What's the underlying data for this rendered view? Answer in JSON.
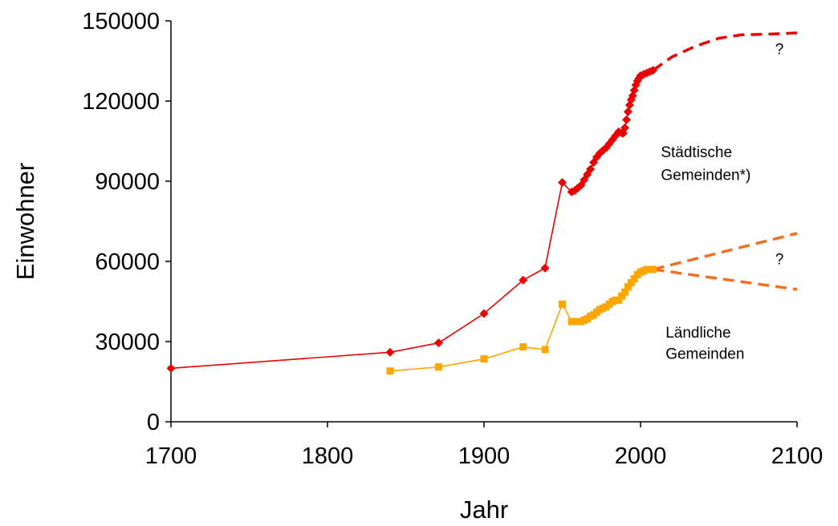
{
  "chart_data": {
    "type": "line",
    "title": "",
    "xlabel": "Jahr",
    "ylabel": "Einwohner",
    "xlim": [
      1700,
      2100
    ],
    "ylim": [
      0,
      150000
    ],
    "xticks": [
      1700,
      1800,
      1900,
      2000,
      2100
    ],
    "yticks": [
      0,
      30000,
      60000,
      90000,
      120000,
      150000
    ],
    "grid": false,
    "legend": "none",
    "colors": {
      "urban": "#ee0000",
      "rural": "#ffa500",
      "rural_projection": "#f07020"
    },
    "series": [
      {
        "key": "urban",
        "marker": "diamond",
        "points": [
          [
            1700,
            20000
          ],
          [
            1840,
            26000
          ],
          [
            1871,
            29500
          ],
          [
            1900,
            40500
          ],
          [
            1925,
            53000
          ],
          [
            1939,
            57500
          ],
          [
            1950,
            89500
          ],
          [
            1956,
            86000
          ],
          [
            1958,
            86500
          ],
          [
            1960,
            87500
          ],
          [
            1962,
            88500
          ],
          [
            1964,
            90500
          ],
          [
            1966,
            92500
          ],
          [
            1968,
            94500
          ],
          [
            1970,
            97000
          ],
          [
            1972,
            99000
          ],
          [
            1974,
            100500
          ],
          [
            1976,
            101500
          ],
          [
            1978,
            102500
          ],
          [
            1980,
            104000
          ],
          [
            1982,
            105500
          ],
          [
            1984,
            107000
          ],
          [
            1986,
            108500
          ],
          [
            1988,
            108000
          ],
          [
            1989,
            108000
          ],
          [
            1990,
            110000
          ],
          [
            1991,
            113000
          ],
          [
            1992,
            116000
          ],
          [
            1993,
            118500
          ],
          [
            1994,
            120500
          ],
          [
            1995,
            122000
          ],
          [
            1996,
            124000
          ],
          [
            1997,
            126000
          ],
          [
            1998,
            127500
          ],
          [
            1999,
            128500
          ],
          [
            2000,
            129500
          ],
          [
            2002,
            130000
          ],
          [
            2004,
            130500
          ],
          [
            2006,
            131000
          ],
          [
            2008,
            131500
          ]
        ]
      },
      {
        "key": "rural",
        "marker": "square",
        "points": [
          [
            1840,
            19000
          ],
          [
            1871,
            20500
          ],
          [
            1900,
            23500
          ],
          [
            1925,
            28000
          ],
          [
            1939,
            27000
          ],
          [
            1950,
            44000
          ],
          [
            1956,
            37500
          ],
          [
            1958,
            37500
          ],
          [
            1960,
            37500
          ],
          [
            1962,
            37500
          ],
          [
            1964,
            38000
          ],
          [
            1966,
            38500
          ],
          [
            1968,
            39500
          ],
          [
            1970,
            40000
          ],
          [
            1972,
            41000
          ],
          [
            1974,
            42000
          ],
          [
            1976,
            42500
          ],
          [
            1978,
            43000
          ],
          [
            1980,
            44000
          ],
          [
            1982,
            45000
          ],
          [
            1984,
            45500
          ],
          [
            1986,
            45500
          ],
          [
            1988,
            47000
          ],
          [
            1990,
            48500
          ],
          [
            1992,
            50500
          ],
          [
            1994,
            52000
          ],
          [
            1996,
            53500
          ],
          [
            1998,
            55000
          ],
          [
            2000,
            56000
          ],
          [
            2002,
            56500
          ],
          [
            2004,
            57000
          ],
          [
            2006,
            57000
          ],
          [
            2008,
            57000
          ]
        ]
      }
    ],
    "projections": [
      {
        "key": "urban",
        "points": [
          [
            2008,
            131500
          ],
          [
            2020,
            136500
          ],
          [
            2035,
            140500
          ],
          [
            2050,
            143500
          ],
          [
            2065,
            144800
          ],
          [
            2080,
            145000
          ],
          [
            2100,
            145500
          ]
        ]
      },
      {
        "key": "rural_projection",
        "points": [
          [
            2008,
            57000
          ],
          [
            2100,
            70500
          ]
        ]
      },
      {
        "key": "rural_projection",
        "points": [
          [
            2008,
            57000
          ],
          [
            2100,
            49500
          ]
        ]
      }
    ],
    "annotations": [
      {
        "lines": [
          "Städtische",
          "Gemeinden*)"
        ],
        "x": 2013,
        "y": 99000,
        "y2": 90500
      },
      {
        "lines": [
          "?"
        ],
        "x": 2086,
        "y": 137500
      },
      {
        "lines": [
          "?"
        ],
        "x": 2086,
        "y": 59000
      },
      {
        "lines": [
          "Ländliche",
          "Gemeinden"
        ],
        "x": 2016,
        "y": 31500,
        "y2": 23500
      }
    ]
  }
}
